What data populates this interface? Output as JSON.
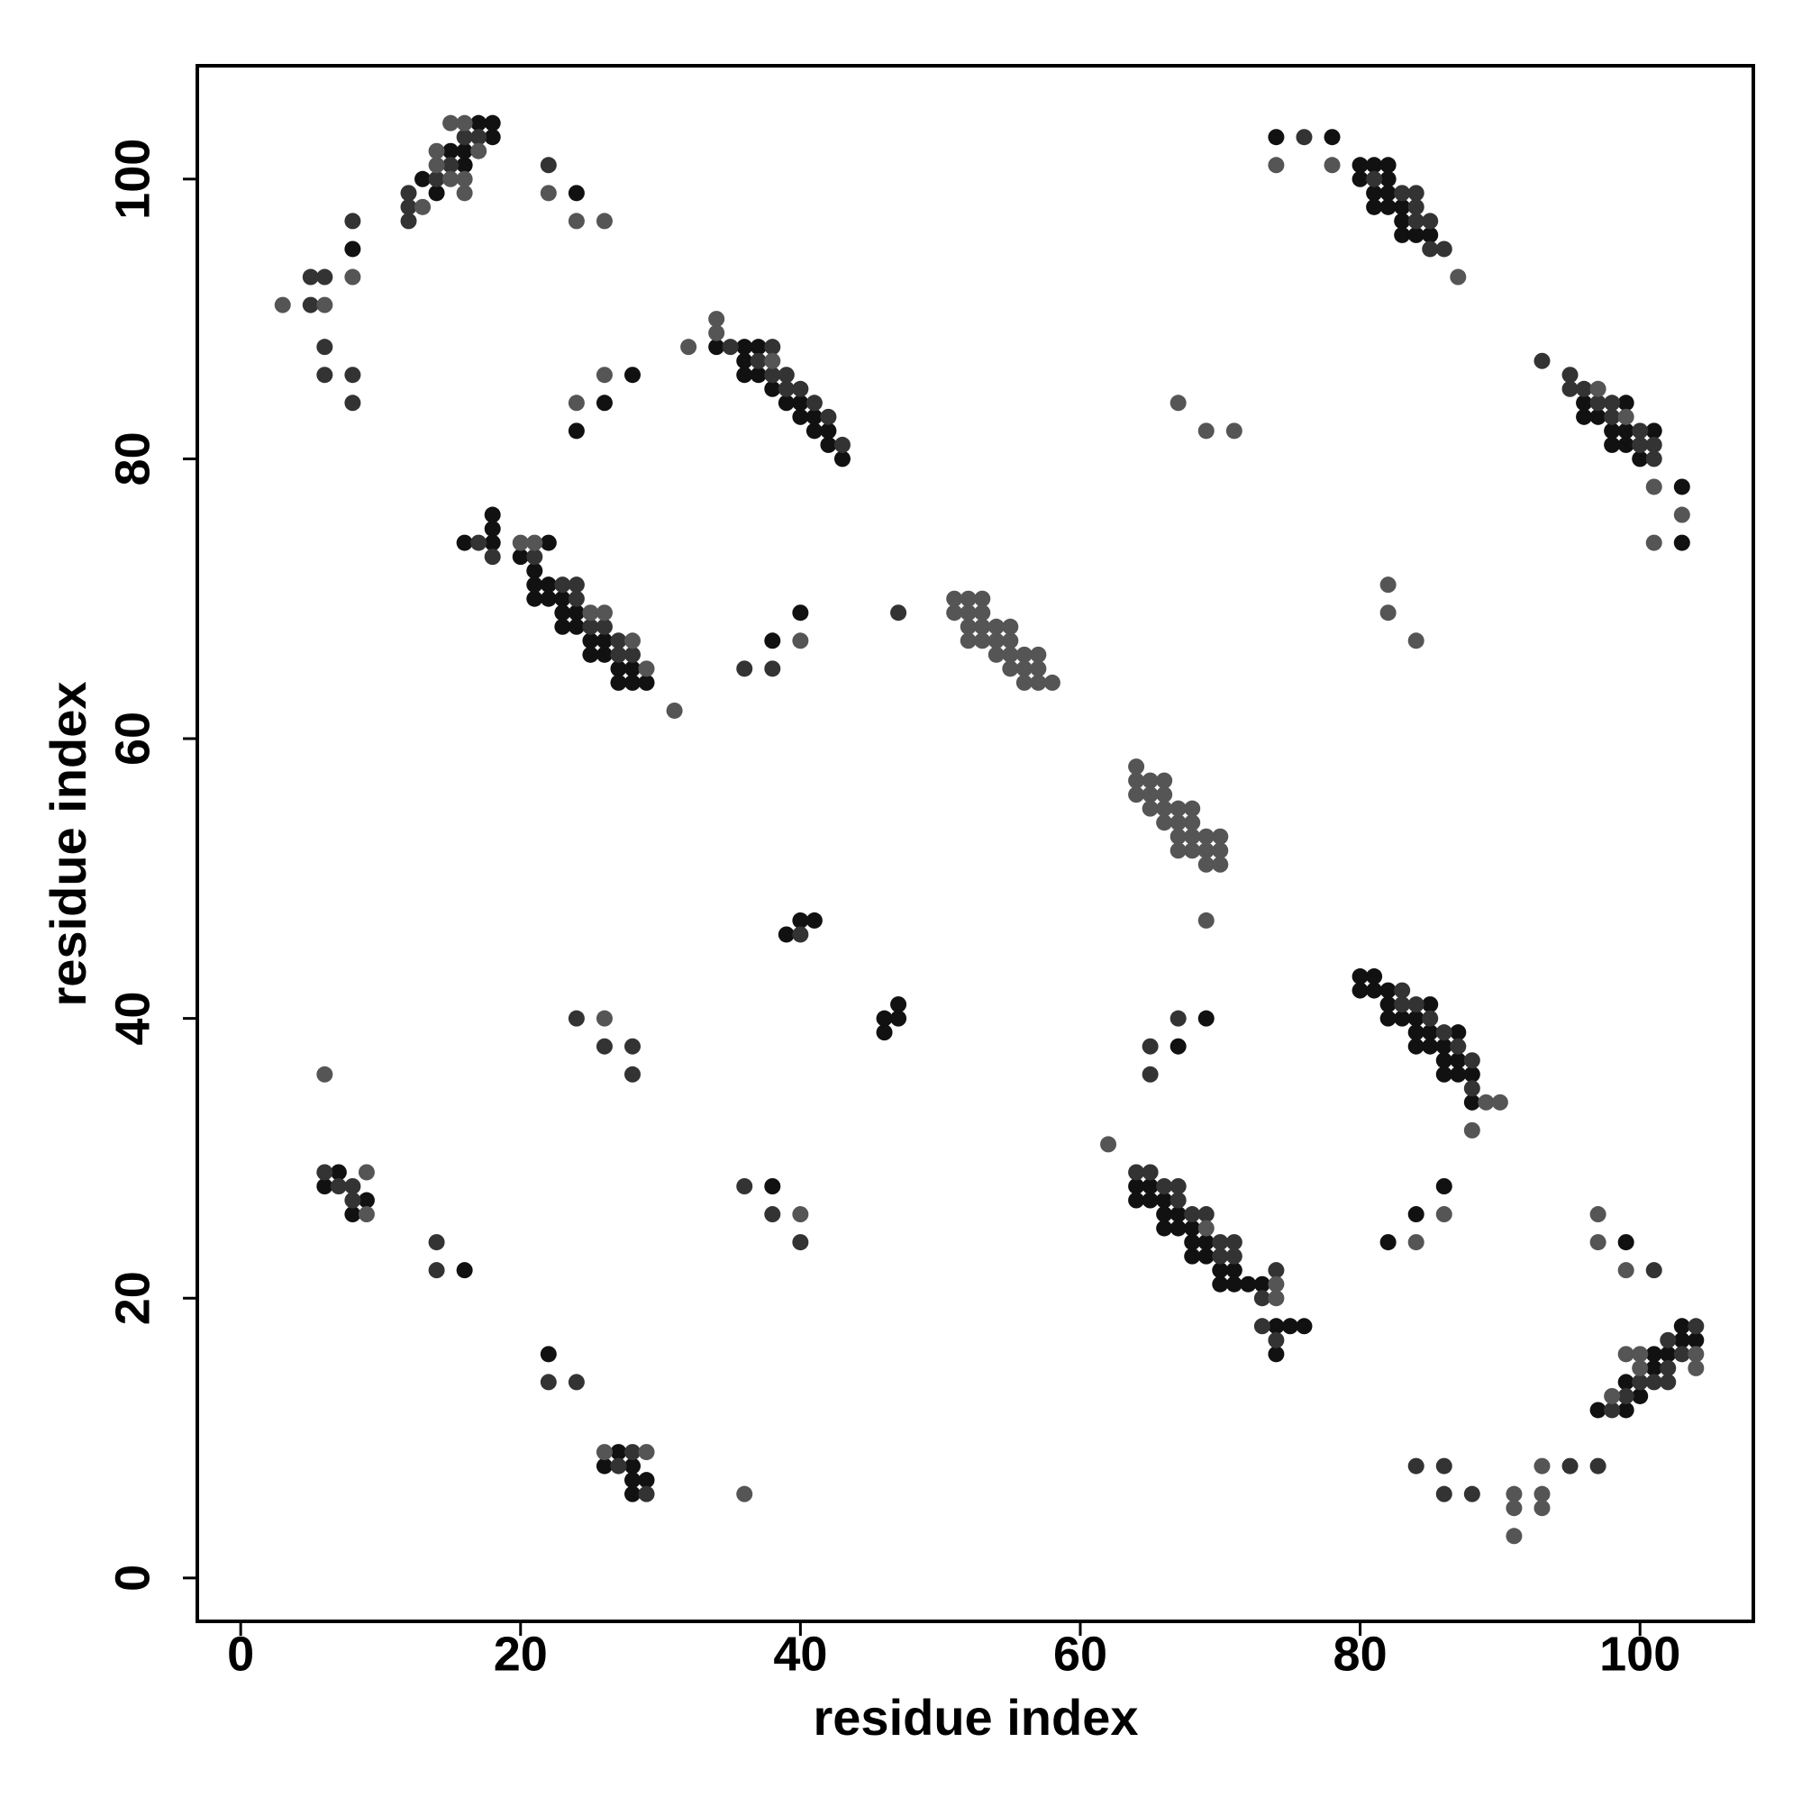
{
  "chart_data": {
    "type": "scatter",
    "xlabel": "residue index",
    "ylabel": "residue index",
    "xlim": [
      -3.1,
      108.1
    ],
    "ylim": [
      -3.1,
      108.1
    ],
    "xticks": [
      0,
      20,
      40,
      60,
      80,
      100
    ],
    "yticks": [
      0,
      20,
      40,
      60,
      80,
      100
    ],
    "grid": false,
    "series": [
      {
        "color": "#111111",
        "x": [
          8,
          13,
          14,
          15,
          16,
          16,
          17,
          18,
          18,
          24,
          24,
          26,
          28,
          34,
          36,
          36,
          37,
          36,
          37,
          38,
          39,
          40,
          40,
          41,
          41,
          42,
          42,
          43,
          16,
          18,
          18,
          18,
          22,
          20,
          21,
          21,
          21,
          22,
          22,
          23,
          23,
          23,
          24,
          24,
          25,
          25,
          26,
          26,
          27,
          27,
          28,
          28,
          29,
          38,
          40,
          40,
          41,
          39,
          46,
          47,
          46,
          47,
          7,
          6,
          9,
          8,
          16,
          22,
          27,
          26,
          28,
          28,
          29,
          28,
          38,
          67,
          69,
          64,
          65,
          64,
          65,
          66,
          66,
          67,
          66,
          67,
          68,
          68,
          69,
          68,
          69,
          70,
          71,
          72,
          70,
          71,
          73,
          74,
          75,
          76,
          74,
          80,
          81,
          80,
          81,
          82,
          82,
          85,
          82,
          83,
          84,
          84,
          85,
          87,
          84,
          85,
          86,
          86,
          87,
          86,
          87,
          88,
          88,
          82,
          84,
          86,
          74,
          78,
          80,
          81,
          82,
          80,
          82,
          81,
          82,
          81,
          82,
          83,
          83,
          83,
          84,
          85,
          96,
          99,
          96,
          97,
          98,
          99,
          101,
          98,
          99,
          100,
          103,
          103,
          99,
          97,
          99,
          99,
          100,
          101,
          101,
          102,
          103,
          103,
          104
        ],
        "values": [
          95,
          100,
          99,
          102,
          101,
          102,
          104,
          104,
          103,
          99,
          82,
          84,
          86,
          88,
          88,
          87,
          88,
          86,
          86,
          85,
          84,
          83,
          84,
          82,
          83,
          81,
          82,
          80,
          74,
          74,
          75,
          76,
          74,
          73,
          72,
          71,
          70,
          71,
          70,
          70,
          69,
          68,
          69,
          68,
          67,
          66,
          67,
          66,
          65,
          64,
          65,
          64,
          64,
          67,
          69,
          47,
          47,
          46,
          40,
          40,
          39,
          41,
          29,
          28,
          27,
          26,
          22,
          16,
          9,
          8,
          8,
          7,
          7,
          6,
          28,
          38,
          40,
          28,
          28,
          27,
          27,
          27,
          26,
          26,
          25,
          25,
          25,
          24,
          24,
          23,
          23,
          22,
          22,
          21,
          21,
          21,
          21,
          18,
          18,
          18,
          16,
          43,
          43,
          42,
          42,
          42,
          41,
          41,
          40,
          40,
          40,
          39,
          39,
          39,
          38,
          38,
          38,
          37,
          37,
          36,
          36,
          36,
          34,
          24,
          26,
          28,
          103,
          103,
          101,
          101,
          101,
          100,
          100,
          99,
          99,
          98,
          98,
          98,
          97,
          96,
          96,
          96,
          84,
          84,
          83,
          83,
          82,
          82,
          82,
          81,
          81,
          80,
          78,
          74,
          24,
          12,
          12,
          14,
          13,
          15,
          16,
          16,
          17,
          18,
          17
        ]
      },
      {
        "color": "#333333",
        "x": [
          5,
          6,
          5,
          6,
          6,
          8,
          8,
          8,
          12,
          12,
          12,
          14,
          15,
          16,
          17,
          22,
          35,
          37,
          38,
          38,
          39,
          39,
          40,
          41,
          42,
          43,
          17,
          18,
          21,
          23,
          24,
          24,
          25,
          26,
          27,
          27,
          28,
          36,
          38,
          47,
          40,
          24,
          26,
          28,
          28,
          6,
          7,
          8,
          8,
          14,
          14,
          22,
          24,
          28,
          27,
          29,
          36,
          38,
          40,
          65,
          65,
          67,
          64,
          65,
          66,
          67,
          67,
          68,
          69,
          70,
          71,
          70,
          71,
          73,
          74,
          73,
          74,
          83,
          83,
          84,
          85,
          86,
          87,
          88,
          88,
          76,
          81,
          83,
          84,
          84,
          84,
          85,
          85,
          86,
          93,
          95,
          95,
          96,
          97,
          98,
          98,
          100,
          100,
          101,
          101,
          101,
          98,
          99,
          100,
          101,
          102,
          102,
          102,
          103,
          104,
          84,
          86,
          86,
          88,
          95,
          97
        ],
        "values": [
          93,
          93,
          91,
          88,
          86,
          86,
          84,
          97,
          99,
          98,
          97,
          100,
          101,
          103,
          103,
          101,
          88,
          87,
          88,
          86,
          85,
          86,
          85,
          84,
          83,
          81,
          74,
          73,
          73,
          71,
          71,
          70,
          68,
          68,
          67,
          66,
          66,
          65,
          65,
          69,
          46,
          40,
          38,
          38,
          36,
          29,
          28,
          28,
          27,
          24,
          22,
          14,
          14,
          9,
          8,
          6,
          28,
          26,
          24,
          38,
          36,
          40,
          29,
          29,
          28,
          28,
          27,
          26,
          26,
          24,
          24,
          23,
          23,
          20,
          22,
          18,
          17,
          42,
          41,
          41,
          40,
          39,
          38,
          37,
          35,
          103,
          100,
          99,
          99,
          98,
          97,
          97,
          95,
          95,
          87,
          86,
          85,
          85,
          84,
          84,
          83,
          82,
          81,
          81,
          80,
          22,
          12,
          13,
          14,
          14,
          14,
          15,
          17,
          16,
          18,
          8,
          8,
          6,
          6,
          8,
          8
        ]
      },
      {
        "color": "#555555",
        "x": [
          3,
          6,
          8,
          13,
          14,
          14,
          15,
          15,
          16,
          16,
          16,
          17,
          22,
          24,
          26,
          24,
          26,
          32,
          34,
          34,
          38,
          20,
          21,
          25,
          26,
          28,
          29,
          31,
          40,
          51,
          52,
          53,
          51,
          52,
          53,
          52,
          52,
          53,
          53,
          54,
          54,
          54,
          55,
          55,
          55,
          55,
          56,
          56,
          56,
          57,
          57,
          57,
          58,
          62,
          64,
          64,
          64,
          65,
          65,
          65,
          66,
          66,
          66,
          66,
          67,
          67,
          67,
          67,
          68,
          68,
          68,
          68,
          69,
          69,
          69,
          70,
          70,
          70,
          69,
          67,
          69,
          71,
          26,
          6,
          9,
          9,
          26,
          29,
          36,
          40,
          69,
          74,
          74,
          89,
          90,
          88,
          84,
          86,
          82,
          82,
          84,
          74,
          78,
          87,
          97,
          99,
          101,
          103,
          101,
          97,
          97,
          99,
          98,
          99,
          100,
          100,
          104,
          104,
          91,
          91,
          91,
          93,
          93,
          93
        ],
        "values": [
          91,
          91,
          93,
          98,
          102,
          101,
          104,
          100,
          104,
          100,
          99,
          102,
          99,
          97,
          97,
          84,
          86,
          88,
          90,
          89,
          87,
          74,
          74,
          69,
          69,
          67,
          65,
          62,
          67,
          70,
          70,
          70,
          69,
          69,
          69,
          68,
          67,
          68,
          67,
          68,
          67,
          66,
          68,
          67,
          66,
          65,
          66,
          65,
          64,
          66,
          65,
          64,
          64,
          31,
          58,
          57,
          56,
          57,
          56,
          55,
          57,
          56,
          55,
          54,
          55,
          54,
          53,
          52,
          55,
          54,
          53,
          52,
          53,
          52,
          51,
          53,
          52,
          51,
          47,
          84,
          82,
          82,
          40,
          36,
          29,
          26,
          9,
          9,
          6,
          26,
          25,
          21,
          20,
          34,
          34,
          32,
          24,
          26,
          71,
          69,
          67,
          101,
          101,
          93,
          85,
          83,
          78,
          76,
          74,
          26,
          24,
          22,
          13,
          16,
          15,
          16,
          16,
          15,
          6,
          5,
          3,
          8,
          6,
          5
        ]
      }
    ]
  }
}
